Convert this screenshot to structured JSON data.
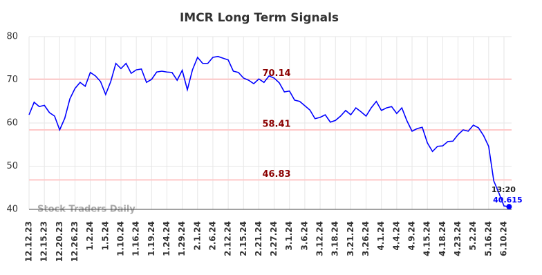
{
  "chart_data": {
    "type": "line",
    "title": "IMCR Long Term Signals",
    "categories": [
      "12.12.23",
      null,
      null,
      "12.15.23",
      null,
      null,
      "12.20.23",
      null,
      null,
      "12.26.23",
      null,
      null,
      "1.2.24",
      null,
      null,
      "1.5.24",
      null,
      null,
      "1.10.24",
      null,
      null,
      "1.16.24",
      null,
      null,
      "1.19.24",
      null,
      null,
      "1.24.24",
      null,
      null,
      "1.29.24",
      null,
      null,
      "2.1.24",
      null,
      null,
      "2.6.24",
      null,
      null,
      "2.12.24",
      null,
      null,
      "2.15.24",
      null,
      null,
      "2.21.24",
      null,
      null,
      "2.27.24",
      null,
      null,
      "3.1.24",
      null,
      null,
      "3.6.24",
      null,
      null,
      "3.12.24",
      null,
      null,
      "3.18.24",
      null,
      null,
      "3.21.24",
      null,
      null,
      "3.26.24",
      null,
      null,
      "4.1.24",
      null,
      null,
      "4.4.24",
      null,
      null,
      "4.9.24",
      null,
      null,
      "4.15.24",
      null,
      null,
      "4.18.24",
      null,
      null,
      "4.23.24",
      null,
      null,
      "5.2.24",
      null,
      null,
      "5.16.24",
      null,
      null,
      "6.10.24",
      null
    ],
    "series": [
      {
        "color": "#0000ff",
        "values": [
          61.9,
          64.8,
          63.8,
          64.1,
          62.4,
          61.6,
          58.4,
          61.1,
          65.6,
          68.0,
          69.4,
          68.5,
          71.7,
          70.9,
          69.6,
          66.6,
          69.6,
          73.8,
          72.6,
          73.8,
          71.5,
          72.3,
          72.5,
          69.4,
          70.1,
          71.8,
          72.0,
          71.8,
          71.7,
          69.9,
          72.2,
          67.7,
          72.3,
          75.2,
          73.8,
          73.8,
          75.2,
          75.4,
          75.0,
          74.6,
          72.0,
          71.7,
          70.4,
          69.9,
          69.1,
          70.2,
          69.4,
          70.9,
          70.4,
          69.3,
          67.2,
          67.4,
          65.3,
          65.0,
          64.0,
          63.0,
          61.0,
          61.3,
          61.9,
          60.2,
          60.6,
          61.6,
          62.9,
          61.9,
          63.5,
          62.6,
          61.6,
          63.5,
          65.0,
          62.9,
          63.5,
          63.8,
          62.2,
          63.5,
          60.5,
          58.1,
          58.7,
          59.0,
          55.4,
          53.4,
          54.6,
          54.7,
          55.7,
          55.8,
          57.3,
          58.4,
          58.1,
          59.5,
          58.9,
          57.1,
          54.6,
          46.6,
          43.8,
          40.8,
          40.615
        ]
      }
    ],
    "levels": [
      70.14,
      58.41,
      46.83
    ],
    "level_color": "#ffc8c8",
    "level_label_color": "#8b0000",
    "last_time": "13:20",
    "watermark": "Stock Traders Daily",
    "ylim": [
      40,
      80
    ],
    "yticks": [
      40,
      50,
      60,
      70,
      80
    ],
    "grid": true
  }
}
